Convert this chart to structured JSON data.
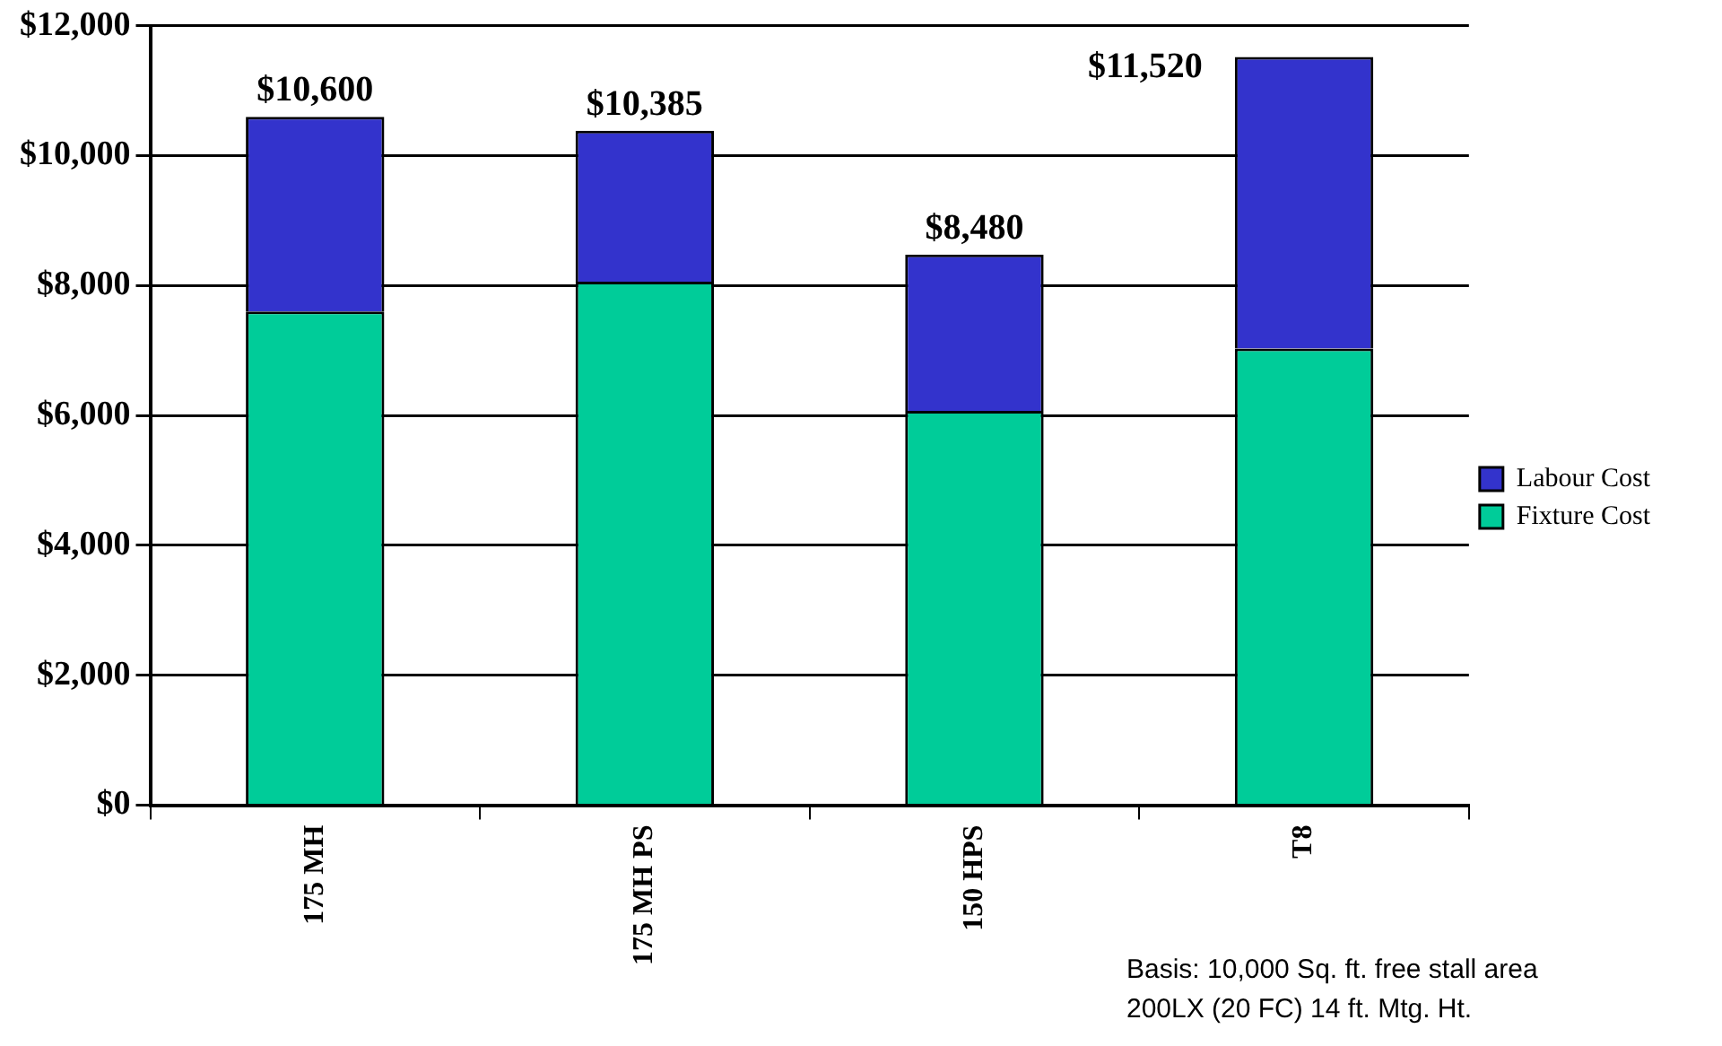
{
  "chart_data": {
    "type": "bar",
    "stacked": true,
    "categories": [
      "175 MH",
      "175 MH PS",
      "150 HPS",
      "T8"
    ],
    "series": [
      {
        "name": "Fixture Cost",
        "color": "#00cc99",
        "values": [
          7600,
          8060,
          6070,
          7030
        ]
      },
      {
        "name": "Labour Cost",
        "color": "#3333cc",
        "values": [
          3000,
          2325,
          2410,
          4490
        ]
      }
    ],
    "totals": [
      "$10,600",
      "$10,385",
      "$8,480",
      "$11,520"
    ],
    "ylim": [
      0,
      12000
    ],
    "yticks": [
      {
        "value": 0,
        "label": "$0"
      },
      {
        "value": 2000,
        "label": "$2,000"
      },
      {
        "value": 4000,
        "label": "$4,000"
      },
      {
        "value": 6000,
        "label": "$6,000"
      },
      {
        "value": 8000,
        "label": "$8,000"
      },
      {
        "value": 10000,
        "label": "$10,000"
      },
      {
        "value": 12000,
        "label": "$12,000"
      }
    ],
    "grid": "y",
    "legend": "right",
    "annotations": [
      "Basis: 10,000 Sq. ft. free stall area",
      "200LX (20 FC) 14 ft. Mtg. Ht."
    ]
  }
}
